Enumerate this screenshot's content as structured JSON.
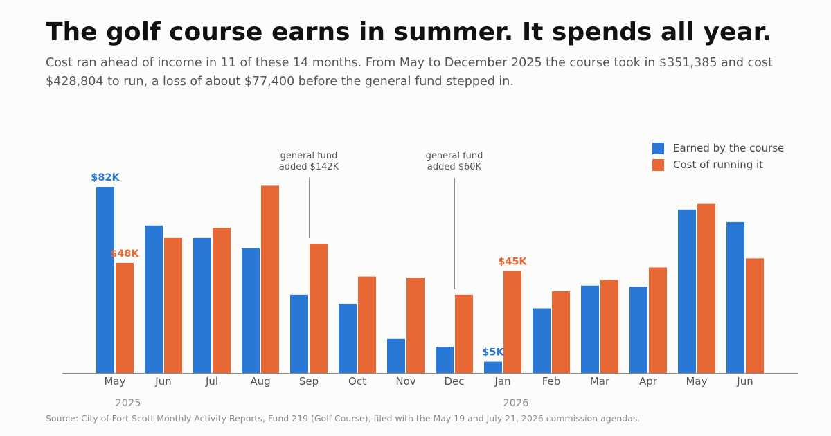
{
  "title": "The golf course earns in summer. It spends all year.",
  "subtitle": "Cost ran ahead of income in 11 of these 14 months. From May to December 2025 the course took in $351,385 and cost $428,804 to run, a loss of about $77,400 before the general fund stepped in.",
  "source": "Source: City of Fort Scott Monthly Activity Reports, Fund 219 (Golf Course), filed with the May 19 and July 21, 2026 commission agendas.",
  "colors": {
    "earned": "#2a78d6",
    "cost": "#e86835",
    "axis": "#888888",
    "annotation_line": "#8a8a8a"
  },
  "chart_data": {
    "type": "bar",
    "categories": [
      "May",
      "Jun",
      "Jul",
      "Aug",
      "Sep",
      "Oct",
      "Nov",
      "Dec",
      "Jan",
      "Feb",
      "Mar",
      "Apr",
      "May",
      "Jun"
    ],
    "year_labels": [
      {
        "label": "2025",
        "category_index": 0
      },
      {
        "label": "2026",
        "category_index": 8
      }
    ],
    "series": [
      {
        "name": "Earned by the course",
        "key": "earned",
        "values": [
          82,
          65,
          59.5,
          55,
          34.5,
          30.5,
          15,
          11.5,
          5,
          28.5,
          38.5,
          38,
          72,
          66.5
        ]
      },
      {
        "name": "Cost of running it",
        "key": "cost",
        "values": [
          48.5,
          59.5,
          64,
          82.5,
          57,
          42.5,
          42,
          34.5,
          45,
          36,
          41,
          46.5,
          74.5,
          50.5
        ]
      }
    ],
    "ylim": [
      0,
      100
    ],
    "unit": "thousands of dollars",
    "grid": false,
    "legend": "top-right",
    "data_labels": [
      {
        "series": "earned",
        "index": 0,
        "text": "$82K"
      },
      {
        "series": "cost",
        "index": 0,
        "text": "$48K"
      },
      {
        "series": "cost",
        "index": 8,
        "text": "$45K"
      },
      {
        "series": "earned",
        "index": 8,
        "text": "$5K"
      }
    ],
    "annotations": [
      {
        "category_index": 4,
        "lines": [
          "general fund",
          "added $142K"
        ]
      },
      {
        "category_index": 7,
        "lines": [
          "general fund",
          "added $60K"
        ]
      }
    ]
  }
}
